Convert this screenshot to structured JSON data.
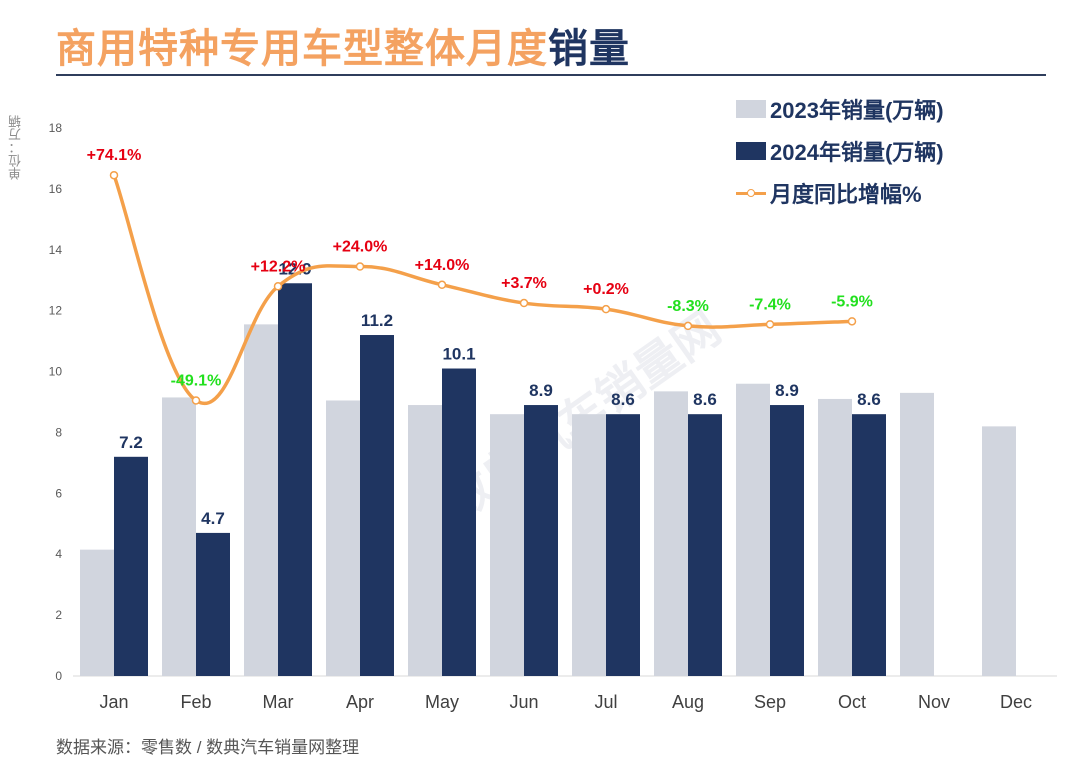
{
  "header": {
    "title_part1": "商用特种专用车型整体月度",
    "title_part2": "销量"
  },
  "unit_label": "单位：万辆",
  "source_text": "数据来源：零售数 / 数典汽车销量网整理",
  "watermark_text": "数典汽车销量网",
  "colors": {
    "series_2023": "#D1D5DE",
    "series_2024": "#1F3561",
    "line": "#F4A04A",
    "pos": "#E60012",
    "neg": "#22E01E"
  },
  "chart_data": {
    "type": "bar",
    "categories": [
      "Jan",
      "Feb",
      "Mar",
      "Apr",
      "May",
      "Jun",
      "Jul",
      "Aug",
      "Sep",
      "Oct",
      "Nov",
      "Dec"
    ],
    "ylim": [
      0,
      18
    ],
    "yticks": [
      0,
      2,
      4,
      6,
      8,
      10,
      12,
      14,
      16,
      18
    ],
    "series": [
      {
        "name": "2023年销量(万辆)",
        "values": [
          4.15,
          9.15,
          11.55,
          9.05,
          8.9,
          8.6,
          8.6,
          9.35,
          9.6,
          9.1,
          9.3,
          8.2
        ]
      },
      {
        "name": "2024年销量(万辆)",
        "values": [
          7.2,
          4.7,
          12.9,
          11.2,
          10.1,
          8.9,
          8.6,
          8.6,
          8.9,
          8.6,
          null,
          null
        ],
        "labels": [
          "7.2",
          "4.7",
          "12.9",
          "11.2",
          "10.1",
          "8.9",
          "8.6",
          "8.6",
          "8.9",
          "8.6",
          "",
          ""
        ]
      },
      {
        "name": "月度同比增幅%",
        "line_positions": [
          16.45,
          9.05,
          12.8,
          13.45,
          12.85,
          12.25,
          12.05,
          11.5,
          11.55,
          11.65
        ],
        "labels": [
          "+74.1%",
          "-49.1%",
          "+12.2%",
          "+24.0%",
          "+14.0%",
          "+3.7%",
          "+0.2%",
          "-8.3%",
          "-7.4%",
          "-5.9%"
        ]
      }
    ]
  }
}
